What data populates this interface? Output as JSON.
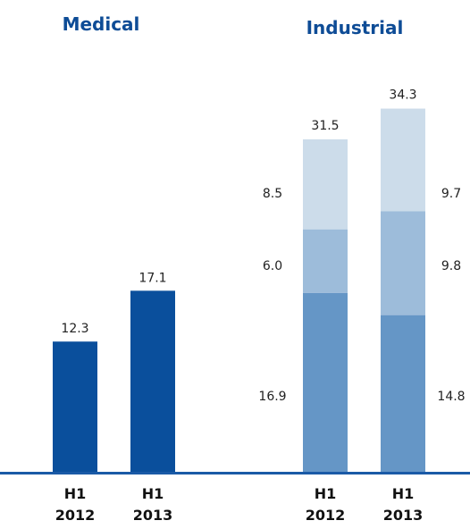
{
  "colors": {
    "medical": "#0a4f9c",
    "industrial_base": "#6596c6",
    "industrial_mid": "#9dbcda",
    "industrial_top": "#ccdcea",
    "axis": "#1a5aa6",
    "title": "#0e4c96"
  },
  "chart_data": [
    {
      "type": "bar",
      "title": "Medical",
      "categories": [
        [
          "H1",
          "2012"
        ],
        [
          "H1",
          "2013"
        ]
      ],
      "series": [
        {
          "values": [
            12.3,
            17.1
          ]
        }
      ],
      "totals": [
        "12.3",
        "17.1"
      ],
      "ylim": [
        0,
        40
      ]
    },
    {
      "type": "bar",
      "stacked": true,
      "title": "Industrial",
      "categories": [
        [
          "H1",
          "2012"
        ],
        [
          "H1",
          "2013"
        ]
      ],
      "series": [
        {
          "values": [
            16.9,
            14.8
          ],
          "labels": [
            "16.9",
            "14.8"
          ]
        },
        {
          "values": [
            6.0,
            9.8
          ],
          "labels": [
            "6.0",
            "9.8"
          ]
        },
        {
          "values": [
            8.5,
            9.7
          ],
          "labels": [
            "8.5",
            "9.7"
          ]
        }
      ],
      "totals": [
        "31.5",
        "34.3"
      ],
      "ylim": [
        0,
        40
      ]
    }
  ]
}
